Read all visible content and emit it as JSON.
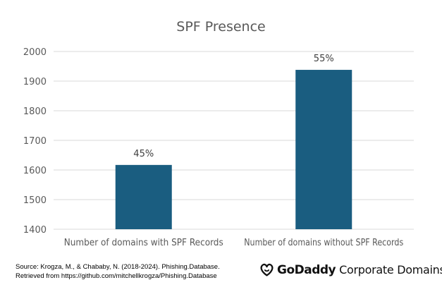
{
  "chart_data": {
    "type": "bar",
    "title": "SPF Presence",
    "categories": [
      "Number of domains with SPF Records",
      "Number of domains without SPF Records"
    ],
    "values": [
      1617,
      1938
    ],
    "data_labels": [
      "45%",
      "55%"
    ],
    "y_ticks": [
      "2000",
      "1900",
      "1800",
      "1700",
      "1600",
      "1500",
      "1400"
    ],
    "ylim": [
      1400,
      2000
    ],
    "grid": true,
    "legend": "none",
    "bar_color": "#1a5d80",
    "grid_color": "#d9d9d9"
  },
  "source": {
    "line1": "Source: Krogza, M., & Chababy, N. (2018-2024). Phishing.Database.",
    "line2": "Retrieved from  https://github.com/mitchellkrogza/Phishing.Database"
  },
  "logo": {
    "icon": "godaddy-logo-icon",
    "brand": "GoDaddy",
    "tagline": "Corporate Domains"
  }
}
